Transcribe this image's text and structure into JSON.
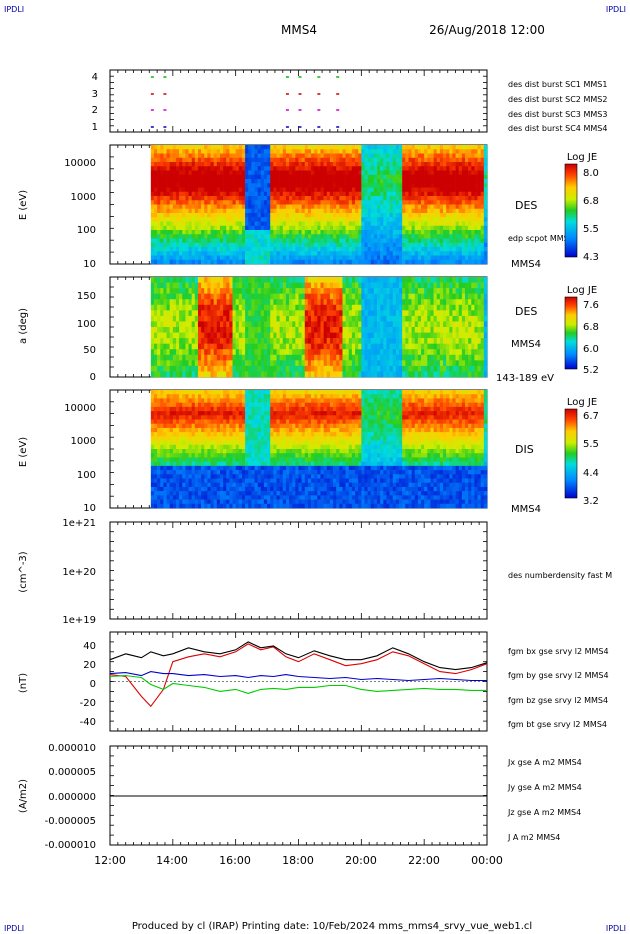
{
  "header": {
    "spacecraft": "MMS4",
    "datetime": "26/Aug/2018 12:00"
  },
  "corners": [
    "IPDLI",
    "IPDLI",
    "IPDLI",
    "IPDLI"
  ],
  "footer": {
    "text": "Produced by cl (IRAP)   Printing date: 10/Feb/2024   mms_mms4_srvy_vue_web1.cl"
  },
  "chart_data": [
    {
      "type": "scatter",
      "panel": "burst-availability",
      "y_ticks": [
        "4",
        "3",
        "2",
        "1"
      ],
      "legend": [
        {
          "label": "des dist burst SC1 MMS1",
          "color": "#0000cc"
        },
        {
          "label": "des dist burst SC2 MMS2",
          "color": "#cc00cc"
        },
        {
          "label": "des dist burst SC3 MMS3",
          "color": "#cc0000"
        },
        {
          "label": "des dist burst SC4 MMS4",
          "color": "#00bb00"
        }
      ],
      "intervals_hours": [
        [
          13.3,
          13.5
        ],
        [
          13.7,
          13.9
        ],
        [
          17.6,
          17.8
        ],
        [
          18.0,
          18.2
        ],
        [
          18.6,
          18.8
        ],
        [
          19.2,
          19.5
        ]
      ]
    },
    {
      "type": "heatmap",
      "panel": "des-energy",
      "ylabel": "E (eV)",
      "y_scale": "log",
      "y_ticks": [
        "10000",
        "1000",
        "100",
        "10"
      ],
      "right_labels": [
        "DES",
        "edp scpot MMS4",
        "MMS4"
      ],
      "colorbar": {
        "title": "Log JE",
        "ticks": [
          "8.0",
          "6.8",
          "5.5",
          "4.3"
        ]
      }
    },
    {
      "type": "heatmap",
      "panel": "des-pitch-angle",
      "ylabel": "a (deg)",
      "ylim": [
        0,
        180
      ],
      "y_ticks": [
        "150",
        "100",
        "50",
        "0"
      ],
      "right_labels": [
        "DES",
        "MMS4",
        "143-189 eV"
      ],
      "colorbar": {
        "title": "Log JE",
        "ticks": [
          "7.6",
          "6.8",
          "6.0",
          "5.2"
        ]
      }
    },
    {
      "type": "heatmap",
      "panel": "dis-energy",
      "ylabel": "E (eV)",
      "y_scale": "log",
      "y_ticks": [
        "10000",
        "1000",
        "100",
        "10"
      ],
      "right_labels": [
        "DIS",
        "MMS4"
      ],
      "colorbar": {
        "title": "Log JE",
        "ticks": [
          "6.7",
          "5.5",
          "4.4",
          "3.2"
        ]
      }
    },
    {
      "type": "line",
      "panel": "number-density",
      "ylabel": "(cm^-3)",
      "y_ticks": [
        "1e+21",
        "1e+20",
        "1e+19"
      ],
      "legend": [
        {
          "label": "des numberdensity fast M",
          "color": "#000000"
        }
      ]
    },
    {
      "type": "line",
      "panel": "fgm-magnetic-field",
      "ylabel": "(nT)",
      "ylim": [
        -50,
        50
      ],
      "y_ticks": [
        "40",
        "20",
        "0",
        "-20",
        "-40"
      ],
      "x": [
        12.0,
        12.5,
        13.0,
        13.3,
        13.7,
        14.0,
        14.5,
        15.0,
        15.5,
        16.0,
        16.4,
        16.8,
        17.2,
        17.6,
        18.0,
        18.5,
        19.0,
        19.5,
        20.0,
        20.5,
        21.0,
        21.5,
        22.0,
        22.5,
        23.0,
        23.5,
        24.0
      ],
      "series": [
        {
          "name": "fgm bx gse srvy l2 MMS4",
          "color": "#dd0000",
          "values": [
            7,
            5,
            -15,
            -25,
            -8,
            20,
            25,
            28,
            25,
            30,
            38,
            32,
            35,
            25,
            20,
            28,
            22,
            16,
            18,
            22,
            30,
            26,
            18,
            10,
            8,
            12,
            18
          ]
        },
        {
          "name": "fgm by gse srvy l2 MMS4",
          "color": "#00cc00",
          "values": [
            5,
            6,
            4,
            -3,
            -8,
            -2,
            -4,
            -6,
            -10,
            -8,
            -12,
            -8,
            -7,
            -8,
            -6,
            -6,
            -4,
            -4,
            -8,
            -10,
            -9,
            -8,
            -7,
            -8,
            -8,
            -9,
            -9
          ]
        },
        {
          "name": "fgm bz gse srvy l2 MMS4",
          "color": "#0000cc",
          "values": [
            8,
            9,
            6,
            10,
            8,
            8,
            6,
            7,
            5,
            6,
            4,
            6,
            5,
            7,
            5,
            4,
            3,
            4,
            2,
            3,
            2,
            1,
            2,
            3,
            2,
            1,
            1
          ]
        },
        {
          "name": "fgm bt gse srvy l2 MMS4",
          "color": "#000000",
          "values": [
            22,
            28,
            24,
            30,
            26,
            28,
            34,
            30,
            28,
            32,
            40,
            34,
            36,
            28,
            24,
            31,
            26,
            22,
            22,
            26,
            34,
            28,
            20,
            14,
            12,
            14,
            19
          ]
        }
      ]
    },
    {
      "type": "line",
      "panel": "current-density",
      "ylabel": "(A/m2)",
      "ylim": [
        -1e-05,
        1e-05
      ],
      "y_ticks": [
        "0.000010",
        "0.000005",
        "0.000000",
        "-0.000005",
        "-0.000010"
      ],
      "x_ticks": [
        "12:00",
        "14:00",
        "16:00",
        "18:00",
        "20:00",
        "22:00",
        "00:00"
      ],
      "legend": [
        {
          "label": "Jx gse A m2 MMS4",
          "color": "#dd0000"
        },
        {
          "label": "Jy gse A m2 MMS4",
          "color": "#88bb00"
        },
        {
          "label": "Jz gse A m2 MMS4",
          "color": "#0000cc"
        },
        {
          "label": "J A m2 MMS4",
          "color": "#000000"
        }
      ]
    }
  ]
}
